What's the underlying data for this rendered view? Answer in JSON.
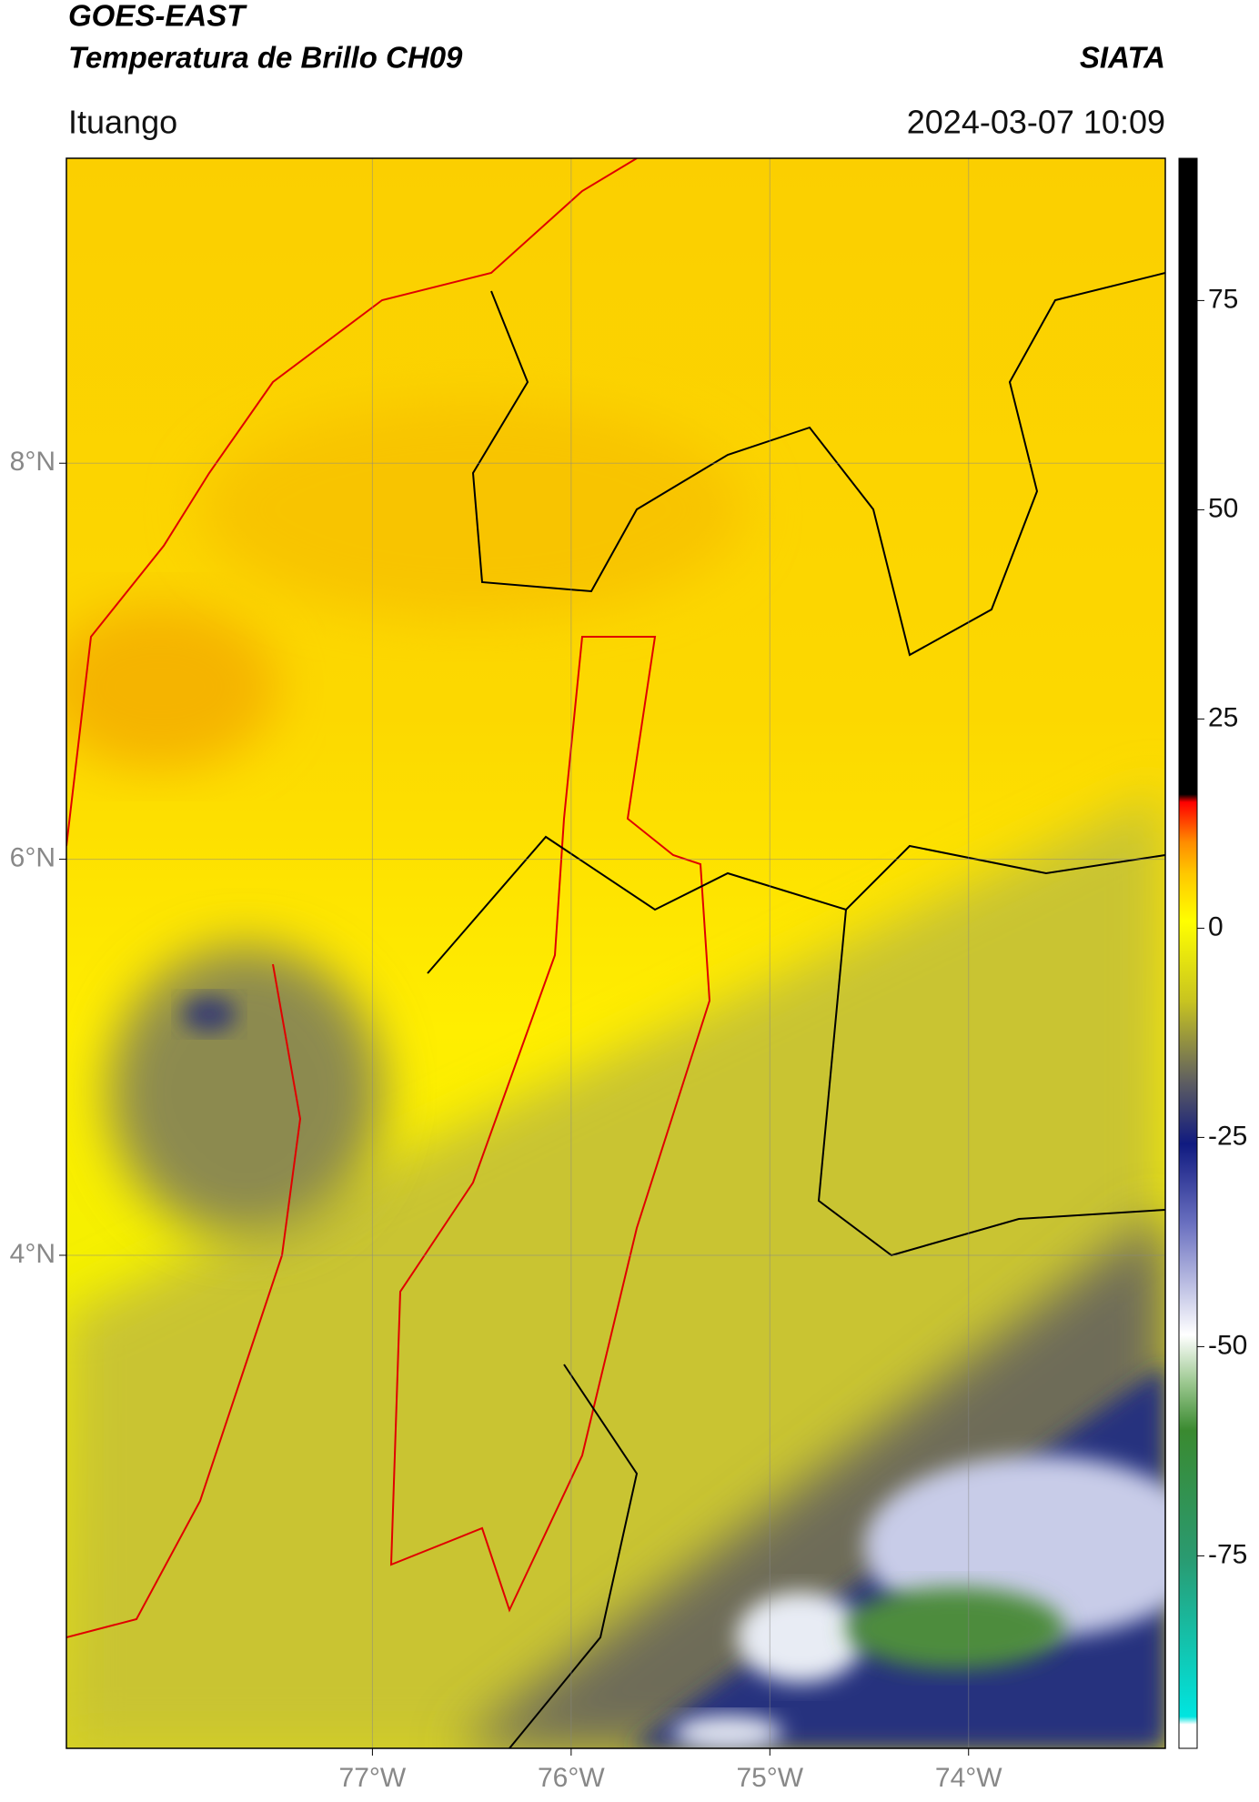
{
  "map": {
    "satellite": "GOES-EAST",
    "title": "Temperatura de Brillo CH09",
    "source": "SIATA",
    "location": "Ituango",
    "datetime": "2024-03-07 10:09",
    "xlim": [
      -78.54,
      -73.01
    ],
    "ylim": [
      1.51,
      9.54
    ],
    "xticks": [
      {
        "value": -77,
        "label": "77°W"
      },
      {
        "value": -76,
        "label": "76°W"
      },
      {
        "value": -75,
        "label": "75°W"
      },
      {
        "value": -74,
        "label": "74°W"
      }
    ],
    "yticks": [
      {
        "value": 4,
        "label": "4°N"
      },
      {
        "value": 6,
        "label": "6°N"
      },
      {
        "value": 8,
        "label": "8°N"
      }
    ],
    "colorbar": {
      "lim": [
        -98,
        92
      ],
      "ticks": [
        -75,
        -50,
        -25,
        0,
        25,
        50,
        75
      ]
    }
  }
}
